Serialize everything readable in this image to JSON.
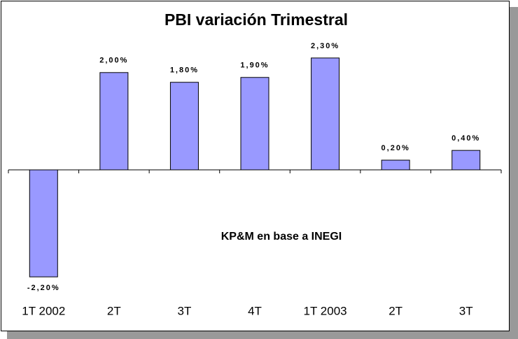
{
  "chart_data": {
    "type": "bar",
    "title": "PBI variación Trimestral",
    "annotation": "KP&M en base a INEGI",
    "categories": [
      "1T 2002",
      "2T",
      "3T",
      "4T",
      "1T 2003",
      "2T",
      "3T"
    ],
    "values": [
      -2.2,
      2.0,
      1.8,
      1.9,
      2.3,
      0.2,
      0.4
    ],
    "value_labels": [
      "-2,20%",
      "2,00%",
      "1,80%",
      "1,90%",
      "2,30%",
      "0,20%",
      "0,40%"
    ],
    "color": "#9999ff",
    "ylim": [
      -2.5,
      2.5
    ]
  }
}
